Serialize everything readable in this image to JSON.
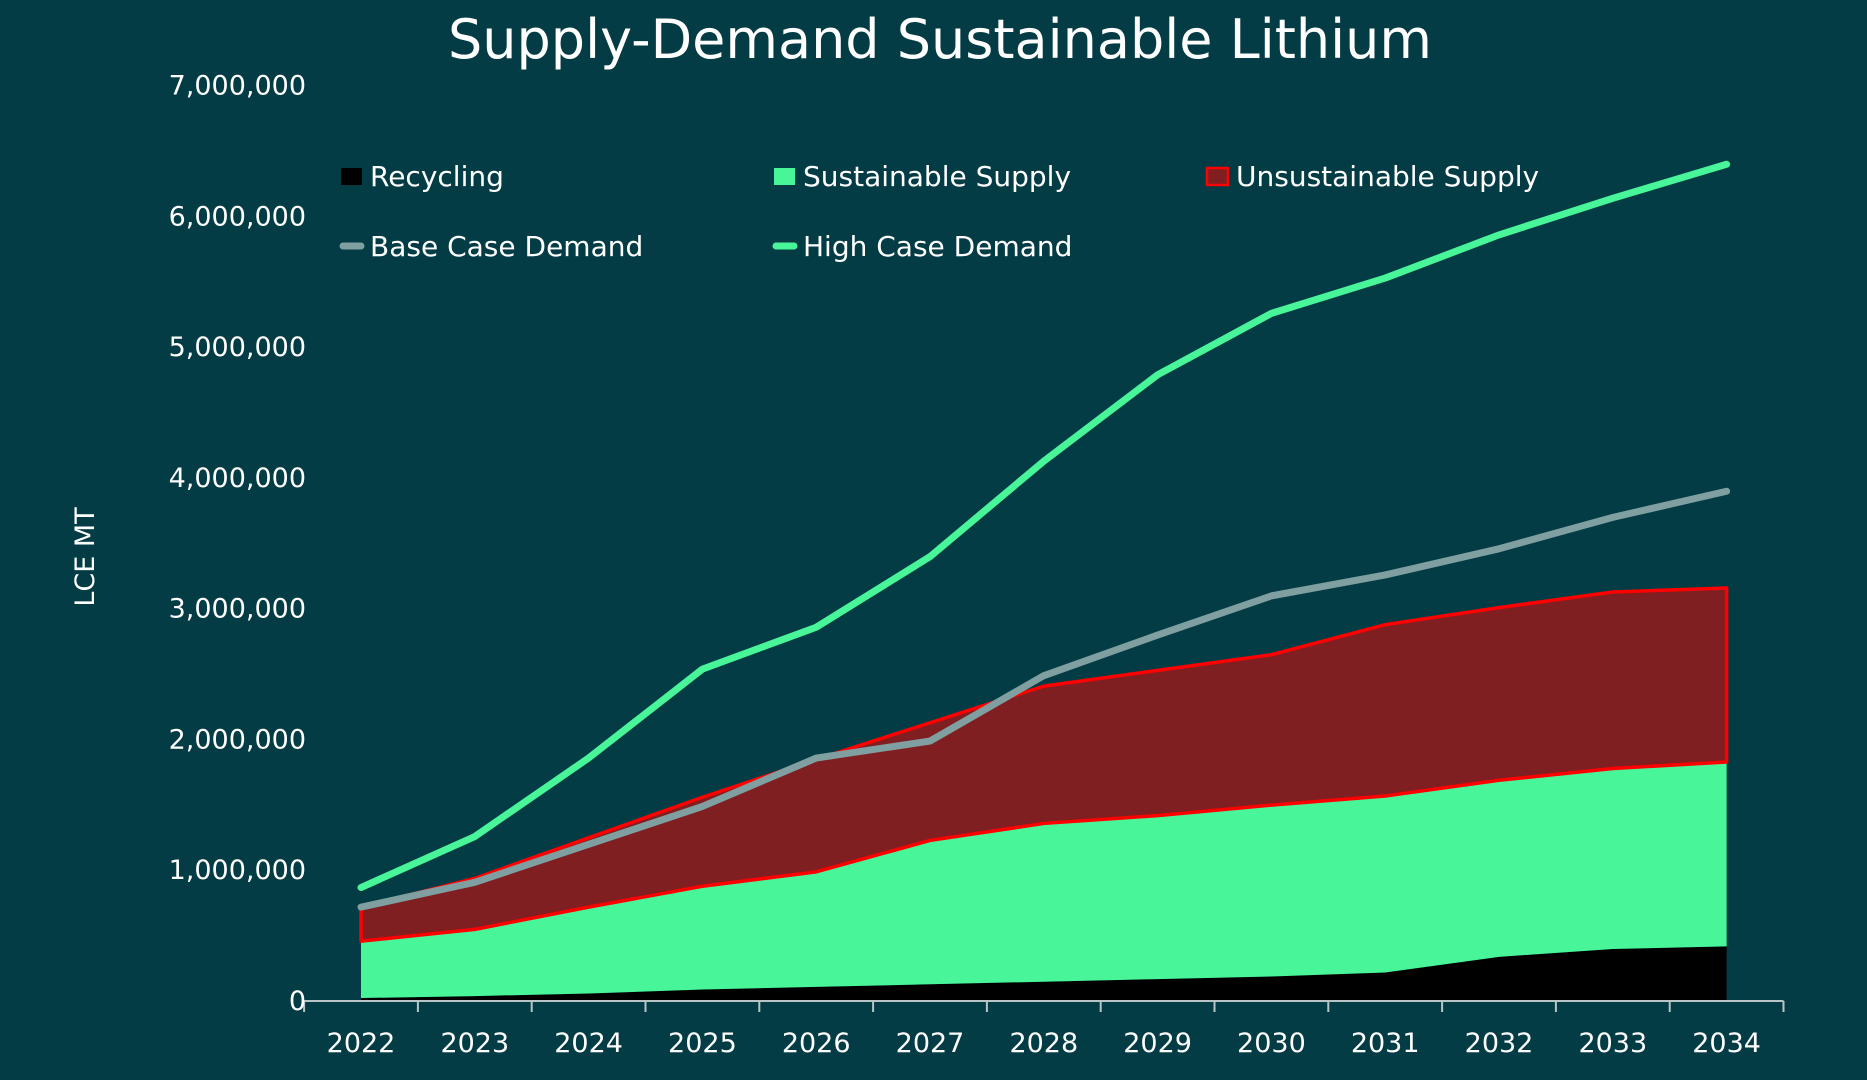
{
  "chart_data": {
    "type": "area",
    "stacked": true,
    "title": "Supply-Demand Sustainable Lithium",
    "xlabel": "",
    "ylabel": "LCE MT",
    "ylim": [
      0,
      7000000
    ],
    "yticks": [
      0,
      1000000,
      2000000,
      3000000,
      4000000,
      5000000,
      6000000,
      7000000
    ],
    "ytick_labels": [
      "0",
      "1,000,000",
      "2,000,000",
      "3,000,000",
      "4,000,000",
      "5,000,000",
      "6,000,000",
      "7,000,000"
    ],
    "grid": false,
    "legend_position": "top-left",
    "categories": [
      "2022",
      "2023",
      "2024",
      "2025",
      "2026",
      "2027",
      "2028",
      "2029",
      "2030",
      "2031",
      "2032",
      "2033",
      "2034"
    ],
    "stacked_series": [
      {
        "name": "Recycling",
        "color": "#000000",
        "values": [
          15000,
          30000,
          50000,
          80000,
          100000,
          120000,
          140000,
          160000,
          180000,
          210000,
          330000,
          390000,
          410000
        ]
      },
      {
        "name": "Sustainable Supply",
        "color": "#48f598",
        "values": [
          435000,
          510000,
          660000,
          790000,
          880000,
          1100000,
          1210000,
          1250000,
          1310000,
          1350000,
          1350000,
          1380000,
          1410000
        ]
      },
      {
        "name": "Unsustainable Supply",
        "color": "#801f22",
        "stroke": "#ff0000",
        "values": [
          260000,
          390000,
          530000,
          680000,
          860000,
          900000,
          1050000,
          1110000,
          1150000,
          1310000,
          1320000,
          1350000,
          1330000
        ]
      }
    ],
    "line_series": [
      {
        "name": "Base Case Demand",
        "color": "#7f9fa0",
        "values": [
          710000,
          900000,
          1190000,
          1480000,
          1850000,
          1980000,
          2480000,
          2790000,
          3090000,
          3250000,
          3450000,
          3690000,
          3890000
        ]
      },
      {
        "name": "High Case Demand",
        "color": "#48f598",
        "values": [
          860000,
          1250000,
          1850000,
          2530000,
          2850000,
          3390000,
          4120000,
          4780000,
          5250000,
          5520000,
          5850000,
          6130000,
          6390000
        ]
      }
    ]
  }
}
